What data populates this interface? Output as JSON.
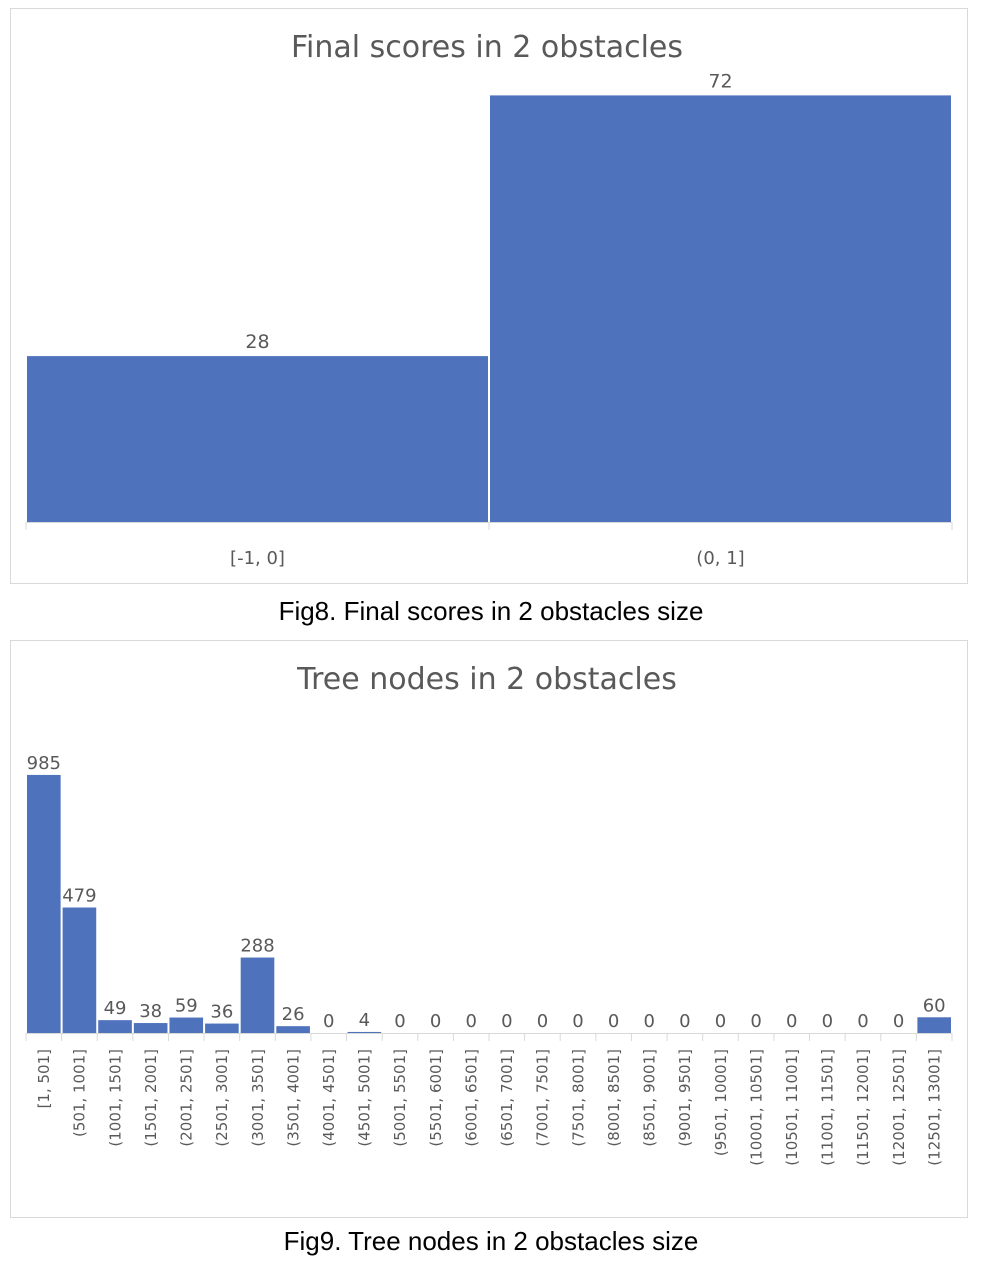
{
  "figures": [
    {
      "caption": "Fig8. Final scores in 2 obstacles size"
    },
    {
      "caption": "Fig9. Tree nodes in 2 obstacles size"
    }
  ],
  "chart_data": [
    {
      "type": "bar",
      "title": "Final scores in 2 obstacles",
      "xlabel": "",
      "ylabel": "",
      "categories": [
        "[-1, 0]",
        "(0, 1]"
      ],
      "values": [
        28,
        72
      ],
      "ylim": [
        0,
        80
      ],
      "grid": false,
      "legend": "none",
      "bar_color": "#4E72BC",
      "axis_color": "#d9d9d9"
    },
    {
      "type": "bar",
      "title": "Tree nodes in 2 obstacles",
      "xlabel": "",
      "ylabel": "",
      "categories": [
        "[1, 501]",
        "(501, 1001]",
        "(1001, 1501]",
        "(1501, 2001]",
        "(2001, 2501]",
        "(2501, 3001]",
        "(3001, 3501]",
        "(3501, 4001]",
        "(4001, 4501]",
        "(4501, 5001]",
        "(5001, 5501]",
        "(5501, 6001]",
        "(6001, 6501]",
        "(6501, 7001]",
        "(7001, 7501]",
        "(7501, 8001]",
        "(8001, 8501]",
        "(8501, 9001]",
        "(9001, 9501]",
        "(9501, 10001]",
        "(10001, 10501]",
        "(10501, 11001]",
        "(11001, 11501]",
        "(11501, 12001]",
        "(12001, 12501]",
        "(12501, 13001]"
      ],
      "values": [
        985,
        479,
        49,
        38,
        59,
        36,
        288,
        26,
        0,
        4,
        0,
        0,
        0,
        0,
        0,
        0,
        0,
        0,
        0,
        0,
        0,
        0,
        0,
        0,
        0,
        60
      ],
      "ylim": [
        0,
        1000
      ],
      "grid": false,
      "legend": "none",
      "bar_color": "#4E72BC",
      "axis_color": "#d9d9d9"
    }
  ]
}
